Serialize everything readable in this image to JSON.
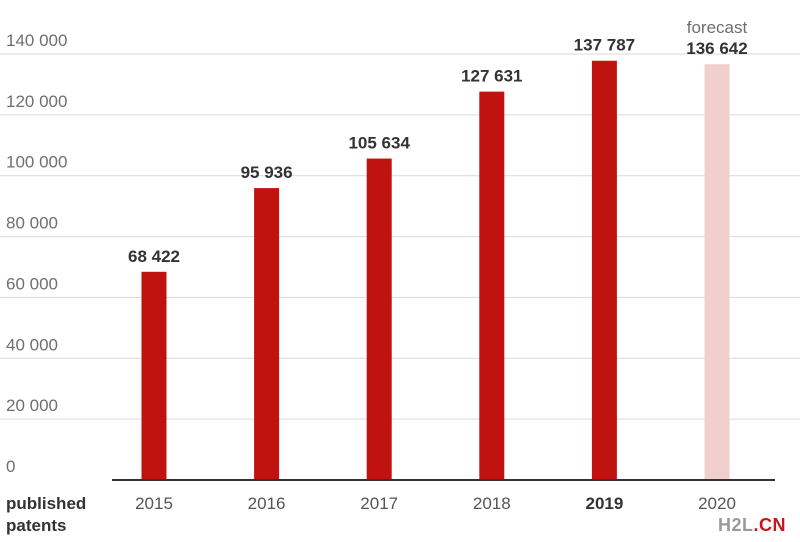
{
  "chart_data": {
    "type": "bar",
    "categories": [
      "2015",
      "2016",
      "2017",
      "2018",
      "2019",
      "2020"
    ],
    "values": [
      68422,
      95936,
      105634,
      127631,
      137787,
      136642
    ],
    "value_labels": [
      "68 422",
      "95 936",
      "105 634",
      "127 631",
      "137 787",
      "136 642"
    ],
    "forecast_flags": [
      false,
      false,
      false,
      false,
      false,
      true
    ],
    "bold_categories": [
      "2019"
    ],
    "forecast_label": "forecast",
    "xlabel_line1": "published",
    "xlabel_line2": "patents",
    "ylim": [
      0,
      140000
    ],
    "yticks": [
      0,
      20000,
      40000,
      60000,
      80000,
      100000,
      120000,
      140000
    ],
    "ytick_labels": [
      "0",
      "20 000",
      "40 000",
      "60 000",
      "80 000",
      "100 000",
      "120 000",
      "140 000"
    ],
    "grid": true,
    "colors": {
      "bar": "#c0130f",
      "forecast_bar": "#f2cfcf",
      "grid": "#d9d9d9",
      "axis": "#333333"
    }
  },
  "watermark": {
    "part1": "H2L",
    "part2": ".CN"
  }
}
